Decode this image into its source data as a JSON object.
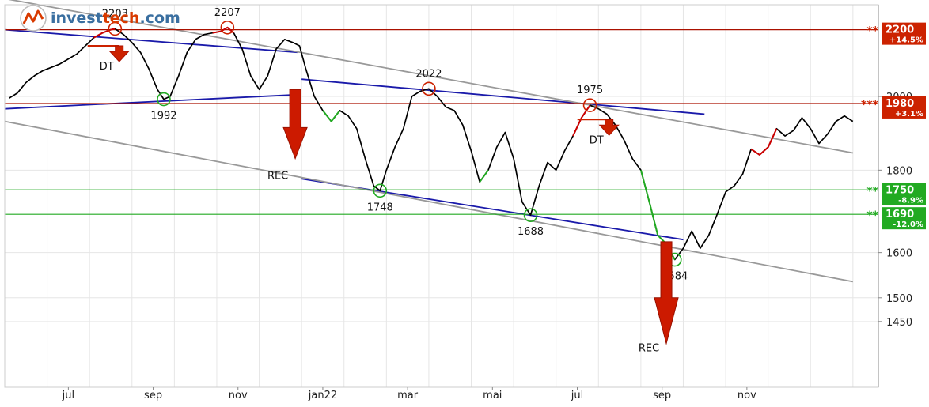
{
  "logo": {
    "text_a": "invest",
    "text_b": "tech",
    "text_c": ".com"
  },
  "chart_data": {
    "type": "line",
    "title": "",
    "xlabel": "",
    "ylabel": "",
    "scale": "log",
    "ylim": [
      1320,
      2280
    ],
    "grid": true,
    "legend": "none",
    "x_ticks": [
      {
        "label": "jul",
        "t": 1.5
      },
      {
        "label": "sep",
        "t": 3.5
      },
      {
        "label": "nov",
        "t": 5.5
      },
      {
        "label": "jan22",
        "t": 7.5
      },
      {
        "label": "mar",
        "t": 9.5
      },
      {
        "label": "mai",
        "t": 11.5
      },
      {
        "label": "jul",
        "t": 13.5
      },
      {
        "label": "sep",
        "t": 15.5
      },
      {
        "label": "nov",
        "t": 17.5
      }
    ],
    "y_ticks": [
      {
        "value": 1450,
        "label": "1450"
      },
      {
        "value": 1500,
        "label": "1500"
      },
      {
        "value": 1600,
        "label": "1600"
      },
      {
        "value": 1800,
        "label": "1800"
      },
      {
        "value": 2000,
        "label": "2000"
      }
    ],
    "price": [
      [
        0.1,
        1995
      ],
      [
        0.3,
        2010
      ],
      [
        0.5,
        2040
      ],
      [
        0.7,
        2060
      ],
      [
        0.9,
        2075
      ],
      [
        1.1,
        2085
      ],
      [
        1.3,
        2095
      ],
      [
        1.5,
        2110
      ],
      [
        1.7,
        2125
      ],
      [
        1.9,
        2150
      ],
      [
        2.1,
        2175
      ],
      [
        2.3,
        2190
      ],
      [
        2.5,
        2200
      ],
      [
        2.6,
        2203
      ],
      [
        2.8,
        2185
      ],
      [
        3.0,
        2160
      ],
      [
        3.2,
        2130
      ],
      [
        3.4,
        2080
      ],
      [
        3.6,
        2020
      ],
      [
        3.75,
        1992
      ],
      [
        3.9,
        2000
      ],
      [
        4.1,
        2060
      ],
      [
        4.3,
        2130
      ],
      [
        4.5,
        2170
      ],
      [
        4.7,
        2185
      ],
      [
        4.9,
        2190
      ],
      [
        5.1,
        2195
      ],
      [
        5.25,
        2207
      ],
      [
        5.4,
        2190
      ],
      [
        5.6,
        2140
      ],
      [
        5.8,
        2060
      ],
      [
        6.0,
        2020
      ],
      [
        6.2,
        2060
      ],
      [
        6.4,
        2140
      ],
      [
        6.6,
        2170
      ],
      [
        6.8,
        2160
      ],
      [
        6.95,
        2150
      ],
      [
        7.1,
        2080
      ],
      [
        7.3,
        2000
      ],
      [
        7.5,
        1960
      ],
      [
        7.7,
        1930
      ],
      [
        7.9,
        1960
      ],
      [
        8.1,
        1945
      ],
      [
        8.3,
        1910
      ],
      [
        8.5,
        1830
      ],
      [
        8.7,
        1760
      ],
      [
        8.85,
        1748
      ],
      [
        9.0,
        1800
      ],
      [
        9.2,
        1860
      ],
      [
        9.4,
        1910
      ],
      [
        9.6,
        2000
      ],
      [
        9.8,
        2015
      ],
      [
        10.0,
        2022
      ],
      [
        10.2,
        2000
      ],
      [
        10.4,
        1970
      ],
      [
        10.6,
        1960
      ],
      [
        10.8,
        1920
      ],
      [
        11.0,
        1850
      ],
      [
        11.2,
        1770
      ],
      [
        11.4,
        1800
      ],
      [
        11.6,
        1860
      ],
      [
        11.8,
        1900
      ],
      [
        12.0,
        1830
      ],
      [
        12.2,
        1720
      ],
      [
        12.4,
        1688
      ],
      [
        12.6,
        1760
      ],
      [
        12.8,
        1820
      ],
      [
        13.0,
        1800
      ],
      [
        13.2,
        1850
      ],
      [
        13.4,
        1890
      ],
      [
        13.6,
        1940
      ],
      [
        13.8,
        1975
      ],
      [
        14.0,
        1965
      ],
      [
        14.2,
        1950
      ],
      [
        14.4,
        1920
      ],
      [
        14.6,
        1880
      ],
      [
        14.8,
        1830
      ],
      [
        15.0,
        1800
      ],
      [
        15.2,
        1720
      ],
      [
        15.4,
        1640
      ],
      [
        15.6,
        1620
      ],
      [
        15.8,
        1584
      ],
      [
        16.0,
        1610
      ],
      [
        16.2,
        1650
      ],
      [
        16.4,
        1610
      ],
      [
        16.6,
        1640
      ],
      [
        16.8,
        1690
      ],
      [
        17.0,
        1745
      ],
      [
        17.2,
        1760
      ],
      [
        17.4,
        1790
      ],
      [
        17.6,
        1855
      ],
      [
        17.8,
        1840
      ],
      [
        18.0,
        1860
      ],
      [
        18.2,
        1910
      ],
      [
        18.4,
        1890
      ],
      [
        18.6,
        1905
      ],
      [
        18.8,
        1940
      ],
      [
        19.0,
        1910
      ],
      [
        19.2,
        1870
      ],
      [
        19.4,
        1895
      ],
      [
        19.6,
        1930
      ],
      [
        19.8,
        1945
      ],
      [
        20.0,
        1930
      ]
    ],
    "price_color": "#000000",
    "colored_segments": [
      {
        "color": "#cc0000",
        "t0": 2.1,
        "t1": 2.7
      },
      {
        "color": "#cc0000",
        "t0": 4.9,
        "t1": 5.4
      },
      {
        "color": "#22aa22",
        "t0": 7.5,
        "t1": 7.9
      },
      {
        "color": "#22aa22",
        "t0": 11.1,
        "t1": 11.5
      },
      {
        "color": "#cc0000",
        "t0": 13.4,
        "t1": 13.8
      },
      {
        "color": "#22aa22",
        "t0": 15.0,
        "t1": 15.8
      },
      {
        "color": "#cc0000",
        "t0": 17.6,
        "t1": 18.2
      }
    ],
    "horizontal_levels": [
      {
        "value": 2200,
        "color": "#aa1100"
      },
      {
        "value": 1980,
        "color": "#aa1100"
      },
      {
        "value": 1750,
        "color": "#22aa22"
      },
      {
        "value": 1690,
        "color": "#22aa22"
      }
    ],
    "trend_lines": [
      {
        "color": "#1a1aaa",
        "points": [
          [
            0.0,
            2200
          ],
          [
            6.9,
            2130
          ]
        ]
      },
      {
        "color": "#1a1aaa",
        "points": [
          [
            0.0,
            1965
          ],
          [
            6.9,
            2005
          ]
        ]
      },
      {
        "color": "#1a1aaa",
        "points": [
          [
            7.0,
            2050
          ],
          [
            16.5,
            1950
          ]
        ]
      },
      {
        "color": "#1a1aaa",
        "points": [
          [
            7.0,
            1778
          ],
          [
            16.0,
            1630
          ]
        ]
      },
      {
        "color": "#999999",
        "points": [
          [
            0.0,
            2300
          ],
          [
            20.0,
            1845
          ]
        ]
      },
      {
        "color": "#999999",
        "points": [
          [
            0.0,
            1930
          ],
          [
            20.0,
            1535
          ]
        ]
      }
    ],
    "annotations": [
      {
        "label": "2203",
        "t": 2.6,
        "value": 2203,
        "kind": "top",
        "pos": "above"
      },
      {
        "label": "2207",
        "t": 5.25,
        "value": 2207,
        "kind": "top",
        "pos": "above"
      },
      {
        "label": "1992",
        "t": 3.75,
        "value": 1992,
        "kind": "bottom",
        "pos": "below"
      },
      {
        "label": "2022",
        "t": 10.0,
        "value": 2022,
        "kind": "top",
        "pos": "above"
      },
      {
        "label": "1748",
        "t": 8.85,
        "value": 1748,
        "kind": "bottom",
        "pos": "below"
      },
      {
        "label": "1688",
        "t": 12.4,
        "value": 1688,
        "kind": "bottom",
        "pos": "below"
      },
      {
        "label": "1975",
        "t": 13.8,
        "value": 1975,
        "kind": "top",
        "pos": "above"
      },
      {
        "label": "1584",
        "t": 15.8,
        "value": 1584,
        "kind": "bottom",
        "pos": "below"
      }
    ],
    "arrows": [
      {
        "label": "DT",
        "t": 2.7,
        "value": 2150,
        "kind": "small"
      },
      {
        "label": "DT",
        "t": 14.25,
        "value": 1935,
        "kind": "small"
      },
      {
        "label": "REC",
        "t": 6.85,
        "value": 2020,
        "to_value": 1830,
        "kind": "big"
      },
      {
        "label": "REC",
        "t": 15.6,
        "value": 1625,
        "to_value": 1405,
        "kind": "big"
      }
    ],
    "badges": [
      {
        "value": 2200,
        "main": "2200",
        "sub": "+14.5%",
        "stars": "**",
        "color": "#cc2200"
      },
      {
        "value": 1980,
        "main": "1980",
        "sub": "+3.1%",
        "stars": "***",
        "color": "#cc2200"
      },
      {
        "value": 1750,
        "main": "1750",
        "sub": "-8.9%",
        "stars": "**",
        "color": "#22aa22"
      },
      {
        "value": 1690,
        "main": "1690",
        "sub": "-12.0%",
        "stars": "**",
        "color": "#22aa22"
      }
    ]
  }
}
